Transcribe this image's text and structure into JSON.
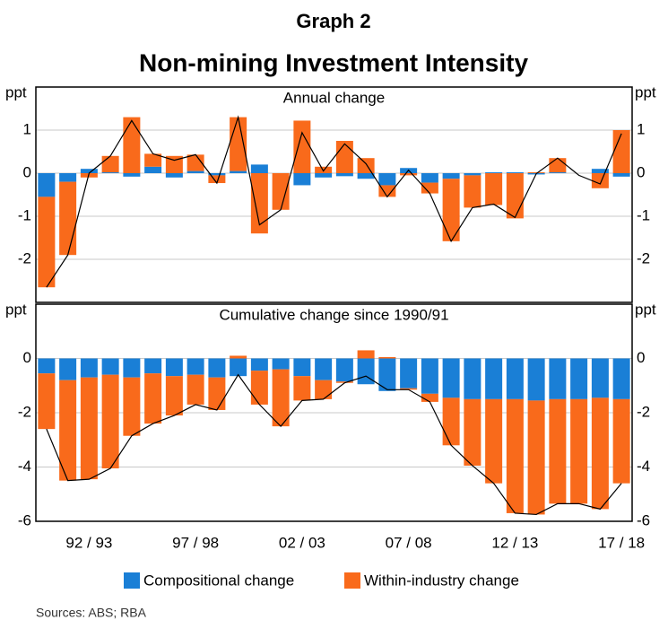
{
  "title": "Graph 2",
  "subtitle": "Non-mining Investment Intensity",
  "source": "Sources:   ABS; RBA",
  "chart_data": [
    {
      "type": "bar",
      "stacked": true,
      "title": "Annual change",
      "ylabel": "ppt",
      "ylim": [
        -3,
        2
      ],
      "yticks": [
        -2,
        -1,
        0,
        1
      ],
      "grid": true,
      "series": [
        {
          "name": "Compositional change",
          "color": "#1a7fd6",
          "values": [
            -0.55,
            -0.2,
            0.1,
            0.02,
            -0.08,
            0.15,
            -0.1,
            0.05,
            -0.05,
            0.05,
            0.2,
            0,
            -0.28,
            -0.1,
            -0.07,
            -0.13,
            -0.28,
            0.12,
            -0.22,
            -0.13,
            -0.05,
            0.02,
            0.02,
            -0.03,
            0.02,
            0,
            0.1,
            -0.08
          ]
        },
        {
          "name": "Within-industry change",
          "color": "#f96a1b",
          "values": [
            -2.1,
            -1.7,
            -0.1,
            0.38,
            1.3,
            0.3,
            0.4,
            0.38,
            -0.18,
            1.25,
            -1.4,
            -0.85,
            1.22,
            0.15,
            0.75,
            0.35,
            -0.27,
            -0.05,
            -0.25,
            -1.45,
            -0.75,
            -0.74,
            -1.05,
            0.02,
            0.33,
            0,
            -0.35,
            1.0
          ]
        }
      ],
      "line": {
        "color": "#000000",
        "values": [
          -2.65,
          -1.9,
          0,
          0.4,
          1.22,
          0.45,
          0.3,
          0.43,
          -0.23,
          1.3,
          -1.2,
          -0.85,
          0.94,
          0.05,
          0.68,
          0.22,
          -0.55,
          0.07,
          -0.47,
          -1.58,
          -0.8,
          -0.72,
          -1.03,
          -0.01,
          0.35,
          -0.05,
          -0.25,
          0.92
        ]
      }
    },
    {
      "type": "bar",
      "stacked": true,
      "title": "Cumulative change since 1990/91",
      "ylabel": "ppt",
      "ylim": [
        -6,
        2
      ],
      "yticks": [
        -6,
        -4,
        -2,
        0
      ],
      "grid": true,
      "categories": [
        null,
        null,
        "92 / 93",
        null,
        null,
        null,
        null,
        "97 / 98",
        null,
        null,
        null,
        null,
        "02 / 03",
        null,
        null,
        null,
        null,
        "07 / 08",
        null,
        null,
        null,
        null,
        "12 / 13",
        null,
        null,
        null,
        null,
        "17 / 18"
      ],
      "series": [
        {
          "name": "Compositional change",
          "color": "#1a7fd6",
          "values": [
            -0.55,
            -0.8,
            -0.7,
            -0.6,
            -0.7,
            -0.55,
            -0.65,
            -0.6,
            -0.7,
            -0.65,
            -0.45,
            -0.4,
            -0.65,
            -0.8,
            -0.85,
            -0.95,
            -1.2,
            -1.1,
            -1.3,
            -1.45,
            -1.5,
            -1.5,
            -1.5,
            -1.55,
            -1.5,
            -1.5,
            -1.45,
            -1.5
          ]
        },
        {
          "name": "Within-industry change",
          "color": "#f96a1b",
          "values": [
            -2.05,
            -3.7,
            -3.75,
            -3.45,
            -2.15,
            -1.85,
            -1.45,
            -1.1,
            -1.2,
            0.1,
            -1.25,
            -2.1,
            -0.9,
            -0.7,
            -0.05,
            0.3,
            0.05,
            -0.05,
            -0.3,
            -1.75,
            -2.45,
            -3.1,
            -4.2,
            -4.2,
            -3.85,
            -3.85,
            -4.1,
            -3.1
          ]
        }
      ],
      "line": {
        "color": "#000000",
        "values": [
          -2.6,
          -4.5,
          -4.45,
          -4.05,
          -2.85,
          -2.4,
          -2.1,
          -1.7,
          -1.9,
          -0.6,
          -1.7,
          -2.5,
          -1.55,
          -1.5,
          -0.9,
          -0.65,
          -1.15,
          -1.15,
          -1.6,
          -3.2,
          -3.95,
          -4.6,
          -5.7,
          -5.75,
          -5.35,
          -5.35,
          -5.55,
          -4.6
        ]
      }
    }
  ]
}
